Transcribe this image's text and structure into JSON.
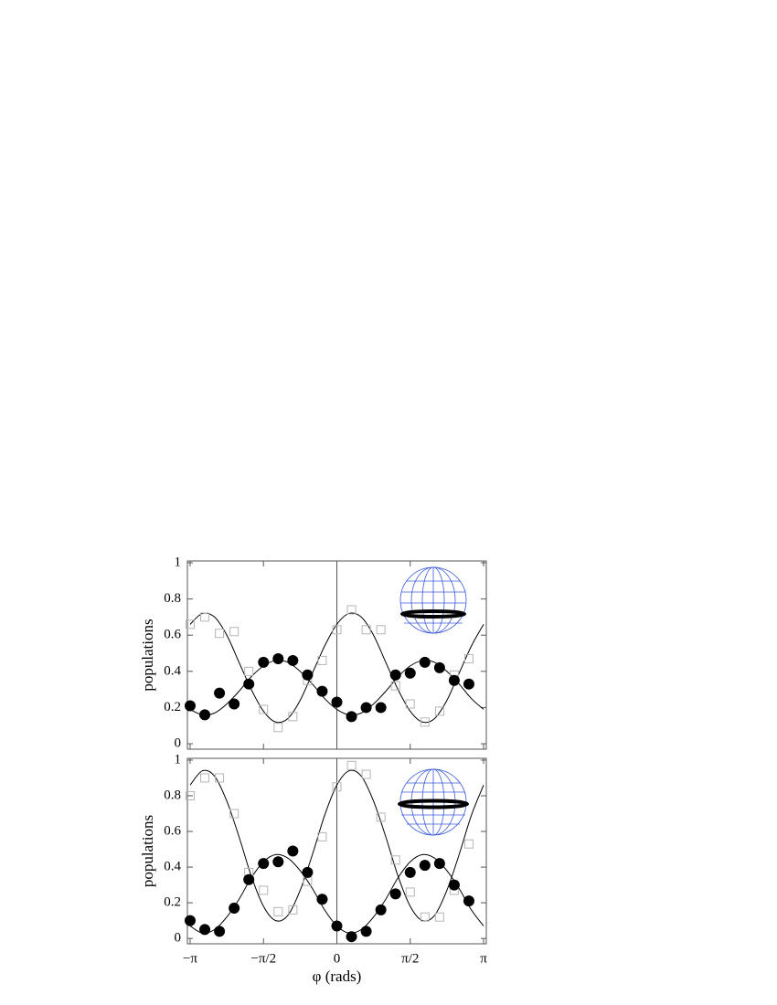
{
  "chart_data": [
    {
      "type": "scatter",
      "ylabel": "populations",
      "xlim": [
        -3.2,
        3.2
      ],
      "ylim": [
        -0.03,
        1.01
      ],
      "yticks": [
        0,
        0.2,
        0.4,
        0.6,
        0.8,
        1
      ],
      "series": [
        {
          "type": "line",
          "color": "#000000",
          "x": [
            -3.1416,
            -2.8798,
            -2.618,
            -2.3562,
            -2.0944,
            -1.8326,
            -1.5708,
            -1.309,
            -1.0472,
            -0.7854,
            -0.5236,
            -0.2618,
            0,
            0.2618,
            0.5236,
            0.7854,
            1.0472,
            1.309,
            1.5708,
            1.8326,
            2.0944,
            2.3562,
            2.618,
            2.8798,
            3.1416
          ],
          "values": [
            0.19,
            0.16,
            0.17,
            0.22,
            0.29,
            0.37,
            0.43,
            0.46,
            0.45,
            0.4,
            0.33,
            0.25,
            0.19,
            0.16,
            0.17,
            0.22,
            0.29,
            0.37,
            0.43,
            0.46,
            0.45,
            0.4,
            0.33,
            0.25,
            0.19
          ]
        },
        {
          "type": "line",
          "color": "#000000",
          "x": [
            -3.1416,
            -2.8798,
            -2.618,
            -2.3562,
            -2.0944,
            -1.8326,
            -1.5708,
            -1.309,
            -1.0472,
            -0.7854,
            -0.5236,
            -0.2618,
            0,
            0.2618,
            0.5236,
            0.7854,
            1.0472,
            1.309,
            1.5708,
            1.8326,
            2.0944,
            2.3562,
            2.618,
            2.8798,
            3.1416
          ],
          "values": [
            0.66,
            0.72,
            0.7,
            0.6,
            0.45,
            0.3,
            0.18,
            0.12,
            0.14,
            0.24,
            0.39,
            0.54,
            0.66,
            0.72,
            0.7,
            0.6,
            0.45,
            0.3,
            0.18,
            0.12,
            0.14,
            0.24,
            0.39,
            0.54,
            0.66
          ]
        },
        {
          "type": "scatter",
          "marker": "square",
          "color": "#b5b5b5",
          "x": [
            -3.1416,
            -2.8274,
            -2.5133,
            -2.1991,
            -1.885,
            -1.5708,
            -1.2566,
            -0.9425,
            -0.6283,
            -0.3142,
            0,
            0.3142,
            0.6283,
            0.9425,
            1.2566,
            1.5708,
            1.885,
            2.1991,
            2.5133,
            2.8274
          ],
          "values": [
            0.66,
            0.7,
            0.61,
            0.62,
            0.4,
            0.19,
            0.09,
            0.15,
            0.35,
            0.46,
            0.63,
            0.74,
            0.63,
            0.63,
            0.32,
            0.22,
            0.12,
            0.18,
            0.38,
            0.47
          ]
        },
        {
          "type": "scatter",
          "marker": "circle",
          "color": "#000000",
          "x": [
            -3.1416,
            -2.8274,
            -2.5133,
            -2.1991,
            -1.885,
            -1.5708,
            -1.2566,
            -0.9425,
            -0.6283,
            -0.3142,
            0,
            0.3142,
            0.6283,
            0.9425,
            1.2566,
            1.5708,
            1.885,
            2.1991,
            2.5133,
            2.8274
          ],
          "values": [
            0.21,
            0.16,
            0.28,
            0.22,
            0.33,
            0.45,
            0.47,
            0.46,
            0.38,
            0.29,
            0.23,
            0.15,
            0.2,
            0.2,
            0.38,
            0.39,
            0.45,
            0.42,
            0.35,
            0.33
          ]
        }
      ]
    },
    {
      "type": "scatter",
      "ylabel": "populations",
      "xlabel": "φ (rads)",
      "xlim": [
        -3.2,
        3.2
      ],
      "ylim": [
        -0.03,
        1.01
      ],
      "yticks": [
        0,
        0.2,
        0.4,
        0.6,
        0.8,
        1
      ],
      "xticks": [
        {
          "value": -3.1416,
          "label": "−π"
        },
        {
          "value": -1.5708,
          "label": "−π/2"
        },
        0,
        {
          "value": 1.5708,
          "label": "π/2"
        },
        {
          "value": 3.1416,
          "label": "π"
        }
      ],
      "series": [
        {
          "type": "line",
          "color": "#000000",
          "x": [
            -3.1416,
            -2.8798,
            -2.618,
            -2.3562,
            -2.0944,
            -1.8326,
            -1.5708,
            -1.309,
            -1.0472,
            -0.7854,
            -0.5236,
            -0.2618,
            0,
            0.2618,
            0.5236,
            0.7854,
            1.0472,
            1.309,
            1.5708,
            1.8326,
            2.0944,
            2.3562,
            2.618,
            2.8798,
            3.1416
          ],
          "values": [
            0.07,
            0.03,
            0.05,
            0.12,
            0.22,
            0.34,
            0.43,
            0.47,
            0.45,
            0.38,
            0.28,
            0.16,
            0.07,
            0.03,
            0.05,
            0.12,
            0.22,
            0.34,
            0.43,
            0.47,
            0.45,
            0.38,
            0.28,
            0.16,
            0.07
          ]
        },
        {
          "type": "line",
          "color": "#000000",
          "x": [
            -3.1416,
            -2.8798,
            -2.618,
            -2.3562,
            -2.0944,
            -1.8326,
            -1.5708,
            -1.309,
            -1.0472,
            -0.7854,
            -0.5236,
            -0.2618,
            0,
            0.2618,
            0.5236,
            0.7854,
            1.0472,
            1.309,
            1.5708,
            1.8326,
            2.0944,
            2.3562,
            2.618,
            2.8798,
            3.1416
          ],
          "values": [
            0.86,
            0.94,
            0.91,
            0.77,
            0.57,
            0.35,
            0.18,
            0.1,
            0.13,
            0.27,
            0.47,
            0.69,
            0.86,
            0.94,
            0.91,
            0.77,
            0.57,
            0.35,
            0.18,
            0.1,
            0.13,
            0.27,
            0.47,
            0.69,
            0.86
          ]
        },
        {
          "type": "scatter",
          "marker": "square",
          "color": "#b5b5b5",
          "x": [
            -3.1416,
            -2.8274,
            -2.5133,
            -2.1991,
            -1.885,
            -1.5708,
            -1.2566,
            -0.9425,
            -0.6283,
            -0.3142,
            0,
            0.3142,
            0.6283,
            0.9425,
            1.2566,
            1.5708,
            1.885,
            2.1991,
            2.5133,
            2.8274
          ],
          "values": [
            0.8,
            0.9,
            0.9,
            0.7,
            0.37,
            0.27,
            0.15,
            0.16,
            0.32,
            0.57,
            0.85,
            0.97,
            0.92,
            0.68,
            0.44,
            0.26,
            0.12,
            0.12,
            0.27,
            0.53
          ]
        },
        {
          "type": "scatter",
          "marker": "circle",
          "color": "#000000",
          "x": [
            -3.1416,
            -2.8274,
            -2.5133,
            -2.1991,
            -1.885,
            -1.5708,
            -1.2566,
            -0.9425,
            -0.6283,
            -0.3142,
            0,
            0.3142,
            0.6283,
            0.9425,
            1.2566,
            1.5708,
            1.885,
            2.1991,
            2.5133,
            2.8274
          ],
          "values": [
            0.1,
            0.05,
            0.04,
            0.17,
            0.33,
            0.42,
            0.43,
            0.49,
            0.37,
            0.22,
            0.07,
            0.01,
            0.04,
            0.16,
            0.25,
            0.37,
            0.41,
            0.42,
            0.3,
            0.21
          ]
        }
      ]
    }
  ]
}
